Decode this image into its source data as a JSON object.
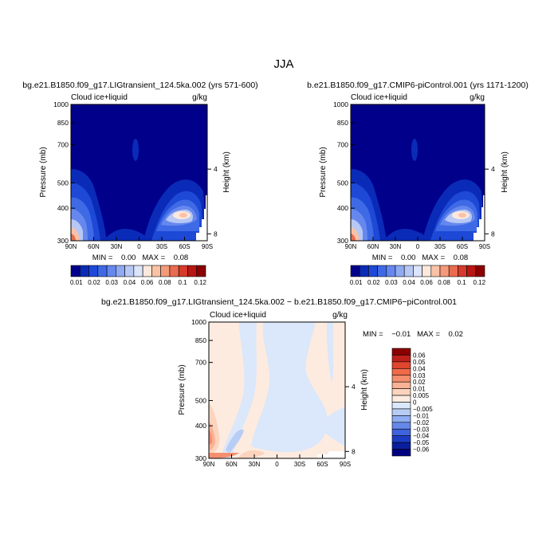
{
  "figure_title": "JJA",
  "chart_data": [
    {
      "type": "heatmap",
      "title": "bg.e21.B1850.f09_g17.LIGtransient_124.5ka.002 (yrs 571-600)",
      "left_label": "Cloud ice+liquid",
      "units": "g/kg",
      "ylabel": "Pressure (mb)",
      "ylabel_right": "Height (km)",
      "x_ticks": [
        "90N",
        "60N",
        "30N",
        "0",
        "30S",
        "60S",
        "90S"
      ],
      "y_ticks": [
        "300",
        "400",
        "500",
        "700",
        "850",
        "1000"
      ],
      "y_ticks_right": [
        "8",
        "4"
      ],
      "stats": "MIN =    0.00   MAX =    0.08",
      "colorbar": {
        "labels": [
          "0.01",
          "0.02",
          "0.03",
          "0.04",
          "0.06",
          "0.08",
          "0.1",
          "0.12"
        ],
        "colors": [
          "#00008a",
          "#0a2bb8",
          "#1d49d6",
          "#3f6ae6",
          "#6688ee",
          "#8fa9f2",
          "#b7c8f5",
          "#dbe5fb",
          "#fde8dc",
          "#f9c2a6",
          "#f39a7a",
          "#e96c50",
          "#d53a2b",
          "#b81613",
          "#8b0000"
        ]
      }
    },
    {
      "type": "heatmap",
      "title": "b.e21.B1850.f09_g17.CMIP6-piControl.001 (yrs 1171-1200)",
      "left_label": "Cloud ice+liquid",
      "units": "g/kg",
      "ylabel": "Pressure (mb)",
      "ylabel_right": "Height (km)",
      "x_ticks": [
        "90N",
        "60N",
        "30N",
        "0",
        "30S",
        "60S",
        "90S"
      ],
      "y_ticks": [
        "300",
        "400",
        "500",
        "700",
        "850",
        "1000"
      ],
      "y_ticks_right": [
        "8",
        "4"
      ],
      "stats": "MIN =    0.00   MAX =    0.08",
      "colorbar": {
        "labels": [
          "0.01",
          "0.02",
          "0.03",
          "0.04",
          "0.06",
          "0.08",
          "0.1",
          "0.12"
        ],
        "colors": [
          "#00008a",
          "#0a2bb8",
          "#1d49d6",
          "#3f6ae6",
          "#6688ee",
          "#8fa9f2",
          "#b7c8f5",
          "#dbe5fb",
          "#fde8dc",
          "#f9c2a6",
          "#f39a7a",
          "#e96c50",
          "#d53a2b",
          "#b81613",
          "#8b0000"
        ]
      }
    },
    {
      "type": "heatmap",
      "title": "bg.e21.B1850.f09_g17.LIGtransient_124.5ka.002 − b.e21.B1850.f09_g17.CMIP6−piControl.001",
      "left_label": "Cloud ice+liquid",
      "units": "g/kg",
      "ylabel": "Pressure (mb)",
      "ylabel_right": "Height (km)",
      "x_ticks": [
        "90N",
        "60N",
        "30N",
        "0",
        "30S",
        "60S",
        "90S"
      ],
      "y_ticks": [
        "300",
        "400",
        "500",
        "700",
        "850",
        "1000"
      ],
      "y_ticks_right": [
        "8",
        "4"
      ],
      "stats": "MIN =    −0.01   MAX =    0.02",
      "colorbar": {
        "labels": [
          "0.06",
          "0.05",
          "0.04",
          "0.03",
          "0.02",
          "0.01",
          "0.005",
          "0",
          "−0.005",
          "−0.01",
          "−0.02",
          "−0.03",
          "−0.04",
          "−0.05",
          "−0.06"
        ],
        "colors": [
          "#8b0000",
          "#c0201a",
          "#e0452e",
          "#f06a4a",
          "#f58e6e",
          "#f9b293",
          "#fcd3bd",
          "#fdebe0",
          "#dbe7fa",
          "#b8cdf5",
          "#8fadf0",
          "#6688ea",
          "#3f62de",
          "#1c3cc4",
          "#0a1f9e",
          "#000080"
        ]
      }
    }
  ]
}
